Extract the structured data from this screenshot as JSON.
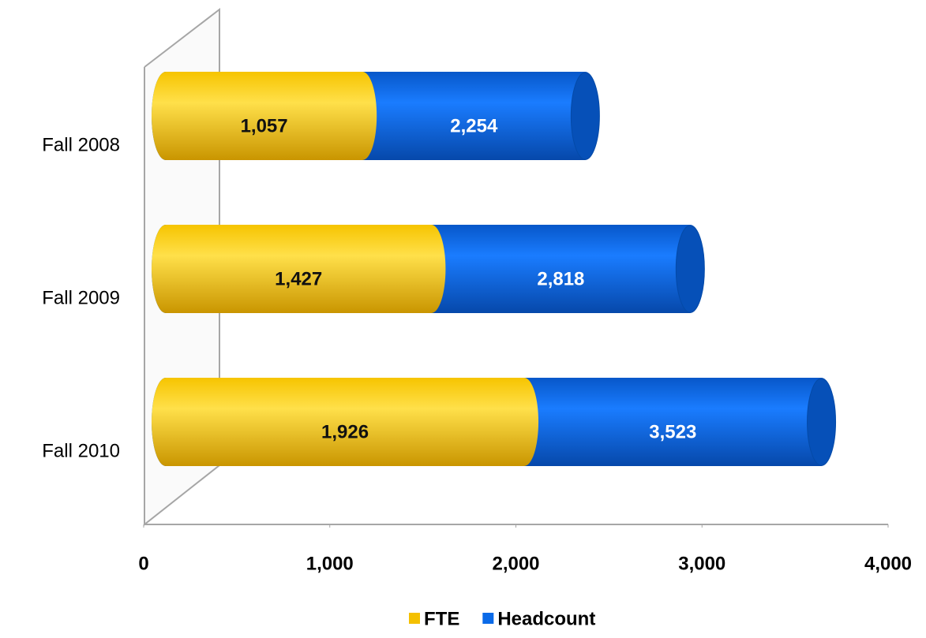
{
  "chart_data": {
    "type": "bar",
    "orientation": "horizontal",
    "overlap": true,
    "categories": [
      "Fall 2008",
      "Fall 2009",
      "Fall 2010"
    ],
    "series": [
      {
        "name": "Headcount",
        "color": "#0a6ae8",
        "values": [
          2254,
          2818,
          3523
        ],
        "value_labels": [
          "2,254",
          "2,818",
          "3,523"
        ]
      },
      {
        "name": "FTE",
        "color": "#f4c000",
        "values": [
          1057,
          1427,
          1926
        ],
        "value_labels": [
          "1,057",
          "1,427",
          "1,926"
        ]
      }
    ],
    "xlim": [
      0,
      4000
    ],
    "xticks": [
      0,
      {
        "value": 1000,
        "label": "1,000"
      },
      {
        "value": 2000,
        "label": "2,000"
      },
      {
        "value": 3000,
        "label": "3,000"
      },
      {
        "value": 4000,
        "label": "4,000"
      }
    ],
    "legend_order": [
      1,
      0
    ],
    "legend": "bottom"
  }
}
